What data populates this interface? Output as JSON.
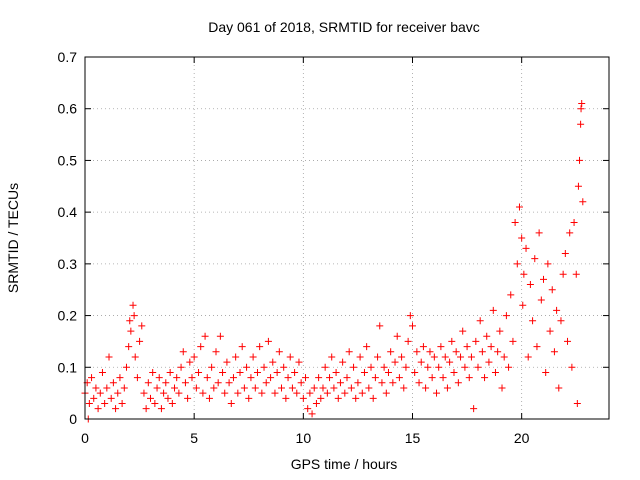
{
  "chart_data": {
    "type": "scatter",
    "title": "Day 061 of 2018, SRMTID for receiver bavc",
    "xlabel": "GPS time / hours",
    "ylabel": "SRMTID / TECUs",
    "xlim": [
      0,
      24
    ],
    "ylim": [
      0,
      0.7
    ],
    "x_ticks": [
      0,
      5,
      10,
      15,
      20
    ],
    "y_ticks": [
      0,
      0.1,
      0.2,
      0.3,
      0.4,
      0.5,
      0.6,
      0.7
    ],
    "x_tick_labels": [
      "0",
      "5",
      "10",
      "15",
      "20"
    ],
    "y_tick_labels": [
      "0",
      "0.1",
      "0.2",
      "0.3",
      "0.4",
      "0.5",
      "0.6",
      "0.7"
    ],
    "grid": true,
    "marker": "plus",
    "color": "#ff0000",
    "series": [
      {
        "name": "SRMTID",
        "points": [
          [
            0.0,
            0.05
          ],
          [
            0.1,
            0.07
          ],
          [
            0.15,
            0.0
          ],
          [
            0.2,
            0.03
          ],
          [
            0.3,
            0.08
          ],
          [
            0.4,
            0.04
          ],
          [
            0.5,
            0.06
          ],
          [
            0.6,
            0.02
          ],
          [
            0.7,
            0.05
          ],
          [
            0.8,
            0.09
          ],
          [
            0.9,
            0.03
          ],
          [
            1.0,
            0.06
          ],
          [
            1.1,
            0.12
          ],
          [
            1.2,
            0.04
          ],
          [
            1.3,
            0.07
          ],
          [
            1.4,
            0.02
          ],
          [
            1.5,
            0.05
          ],
          [
            1.6,
            0.08
          ],
          [
            1.7,
            0.03
          ],
          [
            1.8,
            0.06
          ],
          [
            1.9,
            0.1
          ],
          [
            2.0,
            0.14
          ],
          [
            2.05,
            0.19
          ],
          [
            2.1,
            0.17
          ],
          [
            2.2,
            0.22
          ],
          [
            2.25,
            0.2
          ],
          [
            2.3,
            0.12
          ],
          [
            2.4,
            0.08
          ],
          [
            2.5,
            0.15
          ],
          [
            2.6,
            0.18
          ],
          [
            2.7,
            0.05
          ],
          [
            2.8,
            0.02
          ],
          [
            2.9,
            0.07
          ],
          [
            3.0,
            0.04
          ],
          [
            3.1,
            0.09
          ],
          [
            3.2,
            0.03
          ],
          [
            3.3,
            0.06
          ],
          [
            3.4,
            0.08
          ],
          [
            3.5,
            0.02
          ],
          [
            3.6,
            0.05
          ],
          [
            3.7,
            0.07
          ],
          [
            3.8,
            0.04
          ],
          [
            3.9,
            0.09
          ],
          [
            4.0,
            0.03
          ],
          [
            4.1,
            0.06
          ],
          [
            4.2,
            0.08
          ],
          [
            4.3,
            0.05
          ],
          [
            4.4,
            0.1
          ],
          [
            4.5,
            0.13
          ],
          [
            4.6,
            0.07
          ],
          [
            4.7,
            0.04
          ],
          [
            4.8,
            0.11
          ],
          [
            4.9,
            0.08
          ],
          [
            5.0,
            0.12
          ],
          [
            5.1,
            0.06
          ],
          [
            5.2,
            0.09
          ],
          [
            5.3,
            0.14
          ],
          [
            5.4,
            0.05
          ],
          [
            5.5,
            0.16
          ],
          [
            5.6,
            0.08
          ],
          [
            5.7,
            0.04
          ],
          [
            5.8,
            0.1
          ],
          [
            5.9,
            0.06
          ],
          [
            6.0,
            0.13
          ],
          [
            6.1,
            0.07
          ],
          [
            6.2,
            0.16
          ],
          [
            6.3,
            0.09
          ],
          [
            6.4,
            0.05
          ],
          [
            6.5,
            0.11
          ],
          [
            6.6,
            0.07
          ],
          [
            6.7,
            0.03
          ],
          [
            6.8,
            0.08
          ],
          [
            6.9,
            0.12
          ],
          [
            7.0,
            0.05
          ],
          [
            7.1,
            0.09
          ],
          [
            7.2,
            0.14
          ],
          [
            7.3,
            0.06
          ],
          [
            7.4,
            0.1
          ],
          [
            7.5,
            0.04
          ],
          [
            7.6,
            0.08
          ],
          [
            7.7,
            0.12
          ],
          [
            7.8,
            0.06
          ],
          [
            7.9,
            0.09
          ],
          [
            8.0,
            0.14
          ],
          [
            8.1,
            0.05
          ],
          [
            8.2,
            0.1
          ],
          [
            8.3,
            0.07
          ],
          [
            8.4,
            0.15
          ],
          [
            8.5,
            0.08
          ],
          [
            8.6,
            0.11
          ],
          [
            8.7,
            0.05
          ],
          [
            8.8,
            0.09
          ],
          [
            8.9,
            0.13
          ],
          [
            9.0,
            0.06
          ],
          [
            9.1,
            0.1
          ],
          [
            9.2,
            0.04
          ],
          [
            9.3,
            0.08
          ],
          [
            9.4,
            0.12
          ],
          [
            9.5,
            0.06
          ],
          [
            9.6,
            0.09
          ],
          [
            9.7,
            0.05
          ],
          [
            9.8,
            0.11
          ],
          [
            9.9,
            0.07
          ],
          [
            10.0,
            0.04
          ],
          [
            10.1,
            0.08
          ],
          [
            10.2,
            0.02
          ],
          [
            10.3,
            0.05
          ],
          [
            10.4,
            0.01
          ],
          [
            10.5,
            0.06
          ],
          [
            10.6,
            0.03
          ],
          [
            10.7,
            0.08
          ],
          [
            10.8,
            0.04
          ],
          [
            10.9,
            0.06
          ],
          [
            11.0,
            0.1
          ],
          [
            11.1,
            0.05
          ],
          [
            11.2,
            0.08
          ],
          [
            11.3,
            0.12
          ],
          [
            11.4,
            0.06
          ],
          [
            11.5,
            0.09
          ],
          [
            11.6,
            0.04
          ],
          [
            11.7,
            0.07
          ],
          [
            11.8,
            0.11
          ],
          [
            11.9,
            0.05
          ],
          [
            12.0,
            0.08
          ],
          [
            12.1,
            0.13
          ],
          [
            12.2,
            0.06
          ],
          [
            12.3,
            0.1
          ],
          [
            12.4,
            0.04
          ],
          [
            12.5,
            0.07
          ],
          [
            12.6,
            0.12
          ],
          [
            12.7,
            0.05
          ],
          [
            12.8,
            0.09
          ],
          [
            12.9,
            0.14
          ],
          [
            13.0,
            0.06
          ],
          [
            13.1,
            0.1
          ],
          [
            13.2,
            0.04
          ],
          [
            13.3,
            0.08
          ],
          [
            13.4,
            0.12
          ],
          [
            13.5,
            0.18
          ],
          [
            13.6,
            0.07
          ],
          [
            13.7,
            0.1
          ],
          [
            13.8,
            0.05
          ],
          [
            13.9,
            0.09
          ],
          [
            14.0,
            0.13
          ],
          [
            14.1,
            0.07
          ],
          [
            14.2,
            0.11
          ],
          [
            14.3,
            0.16
          ],
          [
            14.4,
            0.08
          ],
          [
            14.5,
            0.12
          ],
          [
            14.6,
            0.06
          ],
          [
            14.7,
            0.1
          ],
          [
            14.8,
            0.15
          ],
          [
            14.9,
            0.2
          ],
          [
            15.0,
            0.18
          ],
          [
            15.1,
            0.09
          ],
          [
            15.2,
            0.13
          ],
          [
            15.3,
            0.07
          ],
          [
            15.4,
            0.11
          ],
          [
            15.5,
            0.14
          ],
          [
            15.6,
            0.06
          ],
          [
            15.7,
            0.1
          ],
          [
            15.8,
            0.13
          ],
          [
            15.9,
            0.08
          ],
          [
            16.0,
            0.12
          ],
          [
            16.1,
            0.05
          ],
          [
            16.2,
            0.1
          ],
          [
            16.3,
            0.14
          ],
          [
            16.4,
            0.08
          ],
          [
            16.5,
            0.12
          ],
          [
            16.6,
            0.06
          ],
          [
            16.7,
            0.11
          ],
          [
            16.8,
            0.15
          ],
          [
            16.9,
            0.09
          ],
          [
            17.0,
            0.13
          ],
          [
            17.1,
            0.07
          ],
          [
            17.2,
            0.12
          ],
          [
            17.3,
            0.17
          ],
          [
            17.4,
            0.1
          ],
          [
            17.5,
            0.14
          ],
          [
            17.6,
            0.08
          ],
          [
            17.7,
            0.12
          ],
          [
            17.8,
            0.02
          ],
          [
            17.9,
            0.15
          ],
          [
            18.0,
            0.1
          ],
          [
            18.1,
            0.19
          ],
          [
            18.2,
            0.13
          ],
          [
            18.3,
            0.08
          ],
          [
            18.4,
            0.16
          ],
          [
            18.5,
            0.11
          ],
          [
            18.6,
            0.14
          ],
          [
            18.7,
            0.21
          ],
          [
            18.8,
            0.09
          ],
          [
            18.9,
            0.13
          ],
          [
            19.0,
            0.17
          ],
          [
            19.1,
            0.06
          ],
          [
            19.2,
            0.12
          ],
          [
            19.3,
            0.2
          ],
          [
            19.4,
            0.1
          ],
          [
            19.5,
            0.24
          ],
          [
            19.6,
            0.15
          ],
          [
            19.7,
            0.38
          ],
          [
            19.8,
            0.3
          ],
          [
            19.9,
            0.41
          ],
          [
            20.0,
            0.35
          ],
          [
            20.05,
            0.22
          ],
          [
            20.1,
            0.28
          ],
          [
            20.2,
            0.33
          ],
          [
            20.3,
            0.12
          ],
          [
            20.4,
            0.26
          ],
          [
            20.5,
            0.19
          ],
          [
            20.6,
            0.31
          ],
          [
            20.7,
            0.14
          ],
          [
            20.8,
            0.36
          ],
          [
            20.9,
            0.23
          ],
          [
            21.0,
            0.27
          ],
          [
            21.1,
            0.09
          ],
          [
            21.2,
            0.3
          ],
          [
            21.3,
            0.17
          ],
          [
            21.4,
            0.25
          ],
          [
            21.5,
            0.13
          ],
          [
            21.6,
            0.21
          ],
          [
            21.7,
            0.06
          ],
          [
            21.8,
            0.19
          ],
          [
            21.9,
            0.28
          ],
          [
            22.0,
            0.32
          ],
          [
            22.1,
            0.15
          ],
          [
            22.2,
            0.36
          ],
          [
            22.3,
            0.1
          ],
          [
            22.4,
            0.38
          ],
          [
            22.5,
            0.28
          ],
          [
            22.55,
            0.03
          ],
          [
            22.6,
            0.45
          ],
          [
            22.65,
            0.5
          ],
          [
            22.7,
            0.57
          ],
          [
            22.72,
            0.6
          ],
          [
            22.75,
            0.61
          ],
          [
            22.8,
            0.42
          ]
        ]
      }
    ]
  }
}
